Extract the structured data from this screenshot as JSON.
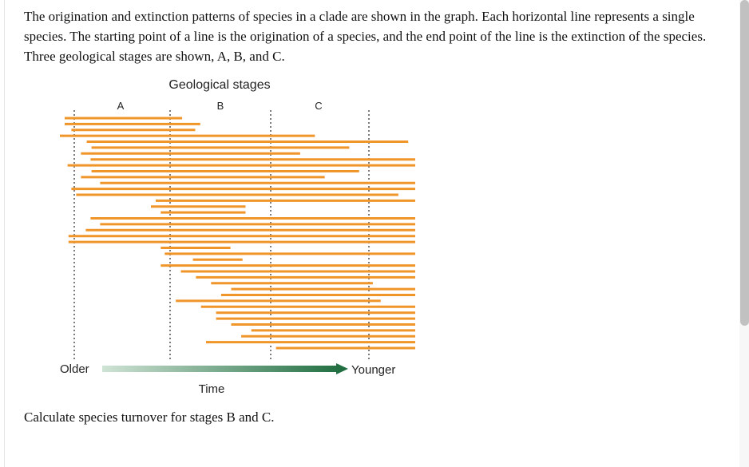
{
  "question": {
    "intro": "The origination and extinction patterns of species in a clade are shown in the graph. Each horizontal line represents a single species. The starting point of a line is the origination of a species, and the end point of the line is the extinction of the species. Three geological stages are shown, A, B, and C.",
    "prompt": "Calculate species turnover for stages B and C."
  },
  "figure": {
    "title": "Geological stages",
    "stage_labels": [
      "A",
      "B",
      "C"
    ],
    "older_label": "Older",
    "younger_label": "Younger",
    "time_label": "Time",
    "colors": {
      "species_line": "#f0952a",
      "arrow_start": "#cfe3d5",
      "arrow_end": "#1c6b3d",
      "boundary": "#444444"
    }
  },
  "chart_data": {
    "type": "range",
    "xlabel": "Time",
    "direction": "older to younger",
    "stages": [
      "A",
      "B",
      "C"
    ],
    "species": [
      [
        0.05,
        1.12
      ],
      [
        0.05,
        1.3
      ],
      [
        0.12,
        1.25
      ],
      [
        0.0,
        2.45
      ],
      [
        0.28,
        3.4
      ],
      [
        0.33,
        2.8
      ],
      [
        0.22,
        2.3
      ],
      [
        0.32,
        4.0
      ],
      [
        0.08,
        3.6
      ],
      [
        0.33,
        2.9
      ],
      [
        0.22,
        2.55
      ],
      [
        0.42,
        3.75
      ],
      [
        0.12,
        3.8
      ],
      [
        0.17,
        3.3
      ],
      [
        1.0,
        3.6
      ],
      [
        0.95,
        1.75
      ],
      [
        1.05,
        1.75
      ],
      [
        0.32,
        4.0
      ],
      [
        0.42,
        3.55
      ],
      [
        0.27,
        4.0
      ],
      [
        0.09,
        3.55
      ],
      [
        0.09,
        4.0
      ],
      [
        1.05,
        1.6
      ],
      [
        1.09,
        3.75
      ],
      [
        1.37,
        1.72
      ],
      [
        1.05,
        3.62
      ],
      [
        1.25,
        3.62
      ],
      [
        1.4,
        3.72
      ],
      [
        1.55,
        3.04
      ],
      [
        1.75,
        4.0
      ],
      [
        1.65,
        4.0
      ],
      [
        1.2,
        3.12
      ],
      [
        1.45,
        4.0
      ],
      [
        1.6,
        4.0
      ],
      [
        1.6,
        4.0
      ],
      [
        1.75,
        3.5
      ],
      [
        1.95,
        4.0
      ],
      [
        1.85,
        3.6
      ],
      [
        1.5,
        4.0
      ],
      [
        2.2,
        4.0
      ]
    ]
  }
}
